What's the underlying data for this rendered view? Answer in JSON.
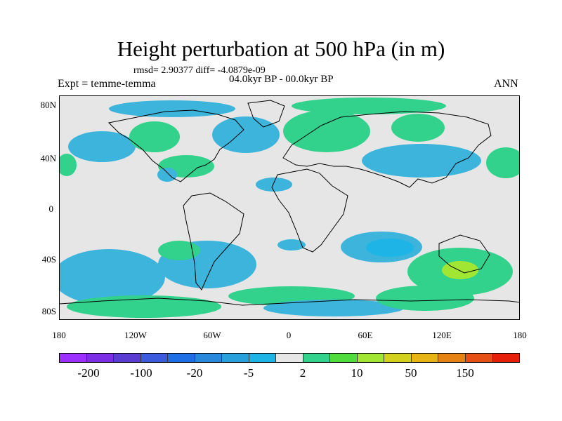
{
  "title": "Height perturbation at 500 hPa (in m)",
  "subtitle_stats": "rmsd= 2.90377 diff= -4.0879e-09",
  "subtitle_period": "04.0kyr BP - 00.0kyr BP",
  "experiment": "Expt = temme-temma",
  "season": "ANN",
  "map": {
    "y_axis_labels": [
      "80N",
      "40N",
      "0",
      "40S",
      "80S"
    ],
    "x_axis_labels": [
      "180",
      "120W",
      "60W",
      "0",
      "60E",
      "120E",
      "180"
    ],
    "background_color": "#e6e6e6",
    "anomaly_regions": [
      {
        "region": "Northwest Pacific",
        "color": "#3cb4dc"
      },
      {
        "region": "North Pacific midlatitudes",
        "color": "#32d28c"
      },
      {
        "region": "North Atlantic",
        "color": "#3cb4dc"
      },
      {
        "region": "Europe",
        "color": "#32d28c"
      },
      {
        "region": "Central Asia to Japan",
        "color": "#3cb4dc"
      },
      {
        "region": "South Pacific",
        "color": "#3cb4dc"
      },
      {
        "region": "South Atlantic",
        "color": "#3cb4dc"
      },
      {
        "region": "Southern Indian Ocean",
        "color": "#3cb4dc"
      },
      {
        "region": "Southern Australia",
        "color": "#32d28c"
      },
      {
        "region": "Southern Australia core",
        "color": "#a0e632"
      }
    ]
  },
  "colorbar": {
    "colors": [
      "#9b30ff",
      "#7b2ee6",
      "#5a3cd2",
      "#3c5adc",
      "#1e6ee6",
      "#2888dc",
      "#28a0dc",
      "#1eb4e6",
      "#e6e6e6",
      "#32d28c",
      "#50dc3c",
      "#a0e632",
      "#d2d21e",
      "#e6b414",
      "#e68214",
      "#e65014",
      "#e61e0a"
    ],
    "labels": [
      "-200",
      "-100",
      "-20",
      "-5",
      "2",
      "10",
      "50",
      "150"
    ]
  }
}
